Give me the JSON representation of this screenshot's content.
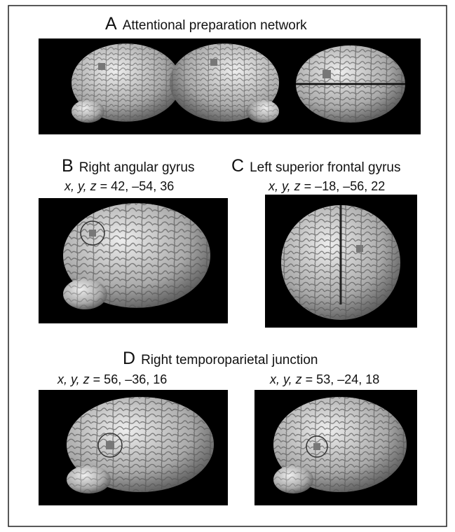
{
  "panels": [
    {
      "letter": "A",
      "title": "Attentional preparation network"
    },
    {
      "letter": "B",
      "title": "Right angular gyrus",
      "coords": [
        {
          "vars": "x, y, z",
          "values": "= 42, –54, 36"
        }
      ]
    },
    {
      "letter": "C",
      "title": "Left superior frontal gyrus",
      "coords": [
        {
          "vars": "x, y, z",
          "values": "= –18, –56, 22"
        }
      ]
    },
    {
      "letter": "D",
      "title": "Right temporoparietal junction",
      "coords": [
        {
          "vars": "x, y, z",
          "values": "= 56, –36, 16"
        },
        {
          "vars": "x, y, z",
          "values": "= 53, –24, 18"
        }
      ]
    }
  ]
}
